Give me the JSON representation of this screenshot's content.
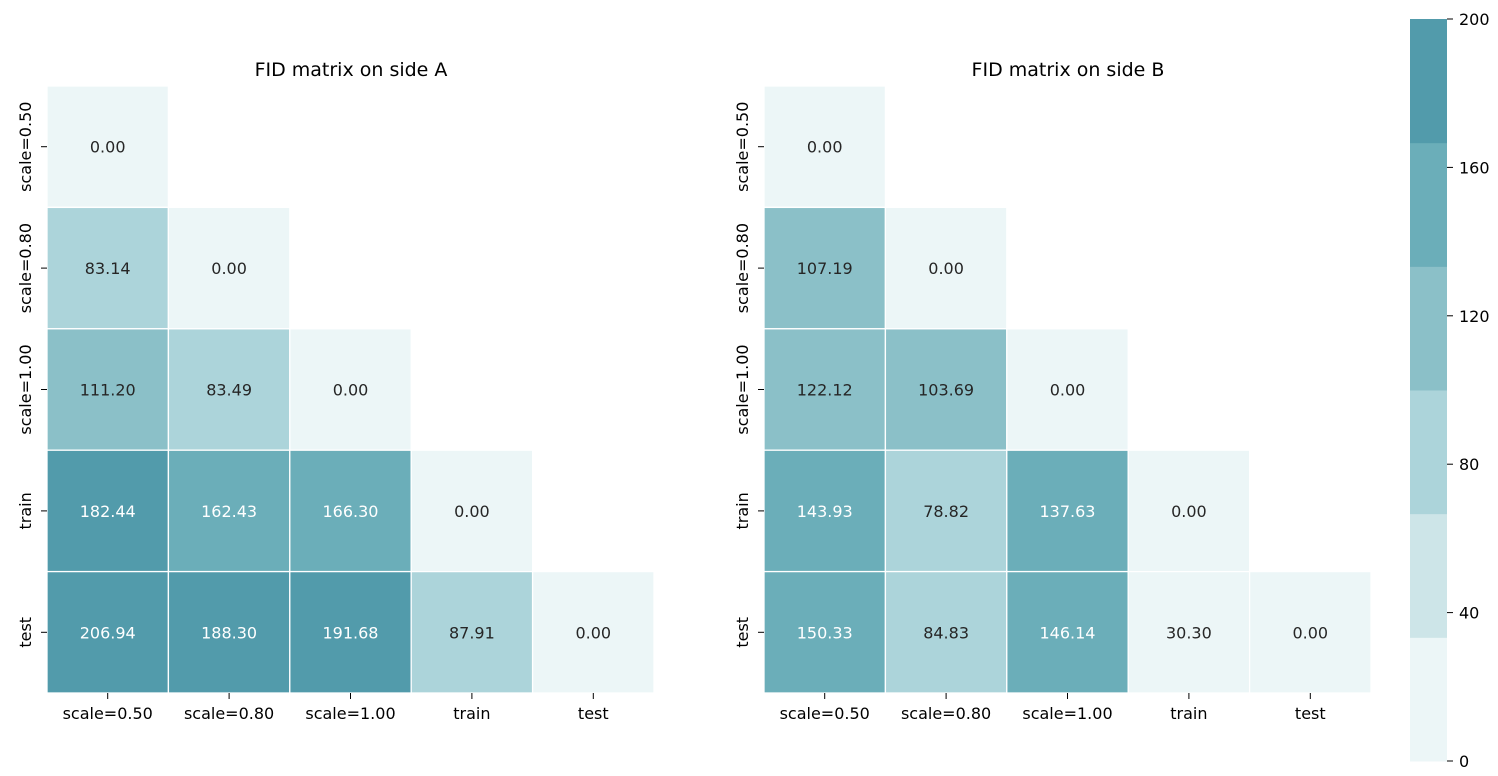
{
  "chart_data": [
    {
      "type": "heatmap",
      "title": "FID matrix on side A",
      "x_categories": [
        "scale=0.50",
        "scale=0.80",
        "scale=1.00",
        "train",
        "test"
      ],
      "y_categories": [
        "scale=0.50",
        "scale=0.80",
        "scale=1.00",
        "train",
        "test"
      ],
      "mask": "upper-triangle",
      "values": [
        [
          0.0,
          null,
          null,
          null,
          null
        ],
        [
          83.14,
          0.0,
          null,
          null,
          null
        ],
        [
          111.2,
          83.49,
          0.0,
          null,
          null
        ],
        [
          182.44,
          162.43,
          166.3,
          0.0,
          null
        ],
        [
          206.94,
          188.3,
          191.68,
          87.91,
          0.0
        ]
      ],
      "value_format": "0.00"
    },
    {
      "type": "heatmap",
      "title": "FID matrix on side B",
      "x_categories": [
        "scale=0.50",
        "scale=0.80",
        "scale=1.00",
        "train",
        "test"
      ],
      "y_categories": [
        "scale=0.50",
        "scale=0.80",
        "scale=1.00",
        "train",
        "test"
      ],
      "mask": "upper-triangle",
      "values": [
        [
          0.0,
          null,
          null,
          null,
          null
        ],
        [
          107.19,
          0.0,
          null,
          null,
          null
        ],
        [
          122.12,
          103.69,
          0.0,
          null,
          null
        ],
        [
          143.93,
          78.82,
          137.63,
          0.0,
          null
        ],
        [
          150.33,
          84.83,
          146.14,
          30.3,
          0.0
        ]
      ],
      "value_format": "0.00"
    }
  ],
  "colorbar": {
    "range": [
      0,
      200
    ],
    "ticks": [
      "0",
      "40",
      "80",
      "120",
      "160",
      "200"
    ],
    "bins": [
      {
        "from": 0,
        "to": 33.33,
        "color": "#ecf6f7"
      },
      {
        "from": 33.33,
        "to": 66.67,
        "color": "#cde5e8"
      },
      {
        "from": 66.67,
        "to": 100,
        "color": "#acd4da"
      },
      {
        "from": 100,
        "to": 133.33,
        "color": "#8bc0c8"
      },
      {
        "from": 133.33,
        "to": 166.67,
        "color": "#6baeb9"
      },
      {
        "from": 166.67,
        "to": 200,
        "color": "#529bab"
      }
    ],
    "dark_text_color": "#262626",
    "light_text_color": "#ffffff"
  }
}
